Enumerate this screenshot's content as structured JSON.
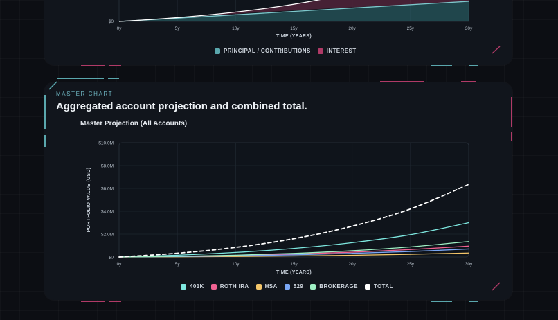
{
  "top_section": {
    "x_axis_title": "TIME (YEARS)",
    "y_tick_labels": [
      "$0"
    ],
    "legend": [
      {
        "label": "PRINCIPAL / CONTRIBUTIONS",
        "color": "#5aa7ad"
      },
      {
        "label": "INTEREST",
        "color": "#b03a67"
      }
    ]
  },
  "master_section": {
    "eyebrow": "MASTER CHART",
    "headline": "Aggregated account projection and combined total.",
    "chart_title": "Master Projection (All Accounts)",
    "legend": [
      {
        "label": "401K",
        "color": "#7ee8e0"
      },
      {
        "label": "ROTH IRA",
        "color": "#f06292"
      },
      {
        "label": "HSA",
        "color": "#f4c66a"
      },
      {
        "label": "529",
        "color": "#7aa7f5"
      },
      {
        "label": "BROKERAGE",
        "color": "#9ff0c4"
      },
      {
        "label": "TOTAL",
        "color": "#ffffff"
      }
    ]
  },
  "chart_data": [
    {
      "type": "area",
      "xlabel": "TIME (YEARS)",
      "ylabel": "",
      "x": [
        0,
        5,
        10,
        15,
        20,
        25,
        30
      ],
      "x_tick_labels": [
        "0y",
        "5y",
        "10y",
        "15y",
        "20y",
        "25y",
        "30y"
      ],
      "series": [
        {
          "name": "PRINCIPAL / CONTRIBUTIONS",
          "color": "#5aa7ad"
        },
        {
          "name": "INTEREST",
          "color": "#b03a67"
        }
      ],
      "note_visible_ticks": [
        "$0"
      ],
      "legend_position": "bottom"
    },
    {
      "type": "line",
      "title": "Master Projection (All Accounts)",
      "xlabel": "TIME (YEARS)",
      "ylabel": "PORTFOLIO VALUE (USD)",
      "x": [
        0,
        5,
        10,
        15,
        20,
        25,
        30
      ],
      "x_tick_labels": [
        "0y",
        "5y",
        "10y",
        "15y",
        "20y",
        "25y",
        "30y"
      ],
      "y_tick_labels": [
        "$0",
        "$2.0M",
        "$4.0M",
        "$6.0M",
        "$8.0M",
        "$10.0M"
      ],
      "ylim": [
        0,
        10000000
      ],
      "grid": true,
      "legend_position": "bottom",
      "series": [
        {
          "name": "401K",
          "color": "#7ee8e0",
          "values": [
            0,
            160000,
            400000,
            750000,
            1250000,
            1950000,
            3000000
          ]
        },
        {
          "name": "ROTH IRA",
          "color": "#f06292",
          "values": [
            0,
            50000,
            130000,
            250000,
            420000,
            650000,
            950000
          ]
        },
        {
          "name": "HSA",
          "color": "#f4c66a",
          "values": [
            0,
            20000,
            50000,
            90000,
            150000,
            240000,
            350000
          ]
        },
        {
          "name": "529",
          "color": "#7aa7f5",
          "values": [
            0,
            40000,
            100000,
            190000,
            320000,
            480000,
            700000
          ]
        },
        {
          "name": "BROKERAGE",
          "color": "#9ff0c4",
          "values": [
            0,
            60000,
            160000,
            320000,
            550000,
            880000,
            1350000
          ]
        },
        {
          "name": "TOTAL",
          "color": "#ffffff",
          "dashed": true,
          "values": [
            0,
            330000,
            840000,
            1600000,
            2690000,
            4200000,
            6350000
          ]
        }
      ]
    }
  ]
}
